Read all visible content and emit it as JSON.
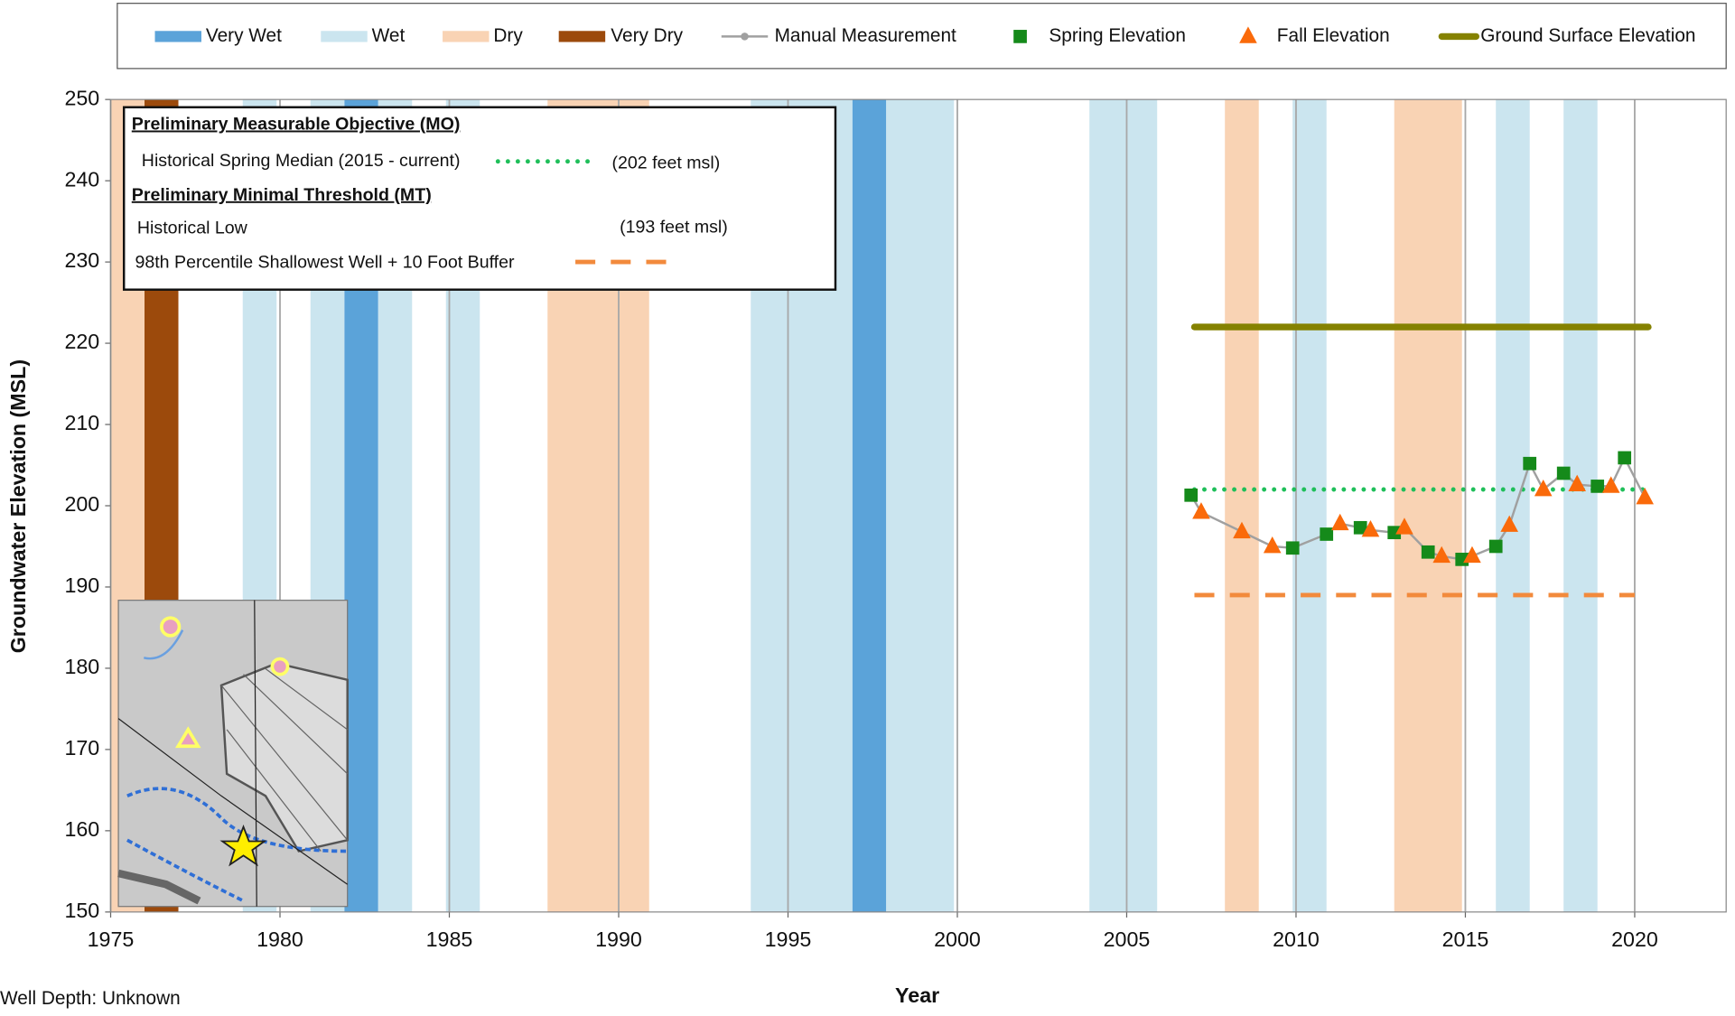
{
  "chart_data": {
    "type": "hydrograph",
    "x_label": "Year",
    "y_label": "Groundwater Elevation (MSL)",
    "footnote": "Well Depth: Unknown",
    "xlim": [
      1975,
      2022.7
    ],
    "xticks": [
      1975,
      1980,
      1985,
      1990,
      1995,
      2000,
      2005,
      2010,
      2015,
      2020
    ],
    "ylim": [
      150,
      250
    ],
    "yticks": [
      150,
      160,
      170,
      180,
      190,
      200,
      210,
      220,
      230,
      240,
      250
    ],
    "grid": "x",
    "bands": [
      {
        "name": "Very Wet",
        "color": "#5ba3d9",
        "ranges": [
          [
            1981.9,
            1982.9
          ],
          [
            1996.9,
            1997.9
          ]
        ]
      },
      {
        "name": "Wet",
        "color": "#cbe5ef",
        "ranges": [
          [
            1978.9,
            1979.9
          ],
          [
            1980.9,
            1981.9
          ],
          [
            1982.9,
            1983.9
          ],
          [
            1984.9,
            1985.9
          ],
          [
            1993.9,
            1996.9
          ],
          [
            1997.9,
            1999.9
          ],
          [
            2003.9,
            2005.9
          ],
          [
            2009.9,
            2010.9
          ],
          [
            2015.9,
            2016.9
          ],
          [
            2017.9,
            2018.9
          ]
        ]
      },
      {
        "name": "Dry",
        "color": "#f9d3b4",
        "ranges": [
          [
            1975,
            1976
          ],
          [
            1987.9,
            1990.9
          ],
          [
            2007.9,
            2008.9
          ],
          [
            2012.9,
            2014.9
          ]
        ]
      },
      {
        "name": "Very Dry",
        "color": "#9c4a0c",
        "ranges": [
          [
            1976,
            1977
          ]
        ]
      }
    ],
    "series": [
      {
        "name": "Manual Measurement",
        "color": "#a0a0a0",
        "marker": "line",
        "x": [
          2006.9,
          2007.2,
          2008.4,
          2009.3,
          2009.9,
          2010.9,
          2011.3,
          2011.9,
          2012.2,
          2012.9,
          2013.2,
          2013.9,
          2014.3,
          2014.9,
          2015.2,
          2015.9,
          2016.3,
          2016.9,
          2017.3,
          2017.9,
          2018.3,
          2018.9,
          2019.3,
          2019.7,
          2020.3
        ],
        "values": [
          201.3,
          199.2,
          196.8,
          195,
          194.8,
          196.5,
          197.8,
          197.3,
          197,
          196.7,
          197.3,
          194.3,
          193.8,
          193.4,
          193.8,
          195,
          197.6,
          205.2,
          202,
          204,
          202.6,
          202.4,
          202.4,
          205.9,
          201
        ]
      },
      {
        "name": "Spring Elevation",
        "color": "#158a1a",
        "marker": "square",
        "x": [
          2006.9,
          2009.9,
          2010.9,
          2011.9,
          2012.9,
          2013.9,
          2014.9,
          2015.9,
          2016.9,
          2017.9,
          2018.9,
          2019.7
        ],
        "values": [
          201.3,
          194.8,
          196.5,
          197.3,
          196.7,
          194.3,
          193.4,
          195,
          205.2,
          204,
          202.4,
          205.9
        ]
      },
      {
        "name": "Fall Elevation",
        "color": "#fa6a0a",
        "marker": "triangle",
        "x": [
          2007.2,
          2008.4,
          2009.3,
          2011.3,
          2012.2,
          2013.2,
          2014.3,
          2015.2,
          2016.3,
          2017.3,
          2018.3,
          2019.3,
          2020.3
        ],
        "values": [
          199.2,
          196.8,
          195,
          197.8,
          197,
          197.3,
          193.8,
          193.8,
          197.6,
          202,
          202.6,
          202.4,
          201
        ]
      }
    ],
    "lines": [
      {
        "name": "Ground Surface Elevation",
        "color": "#858200",
        "style": "solid",
        "x": [
          2007,
          2020.4
        ],
        "values": [
          222,
          222
        ]
      },
      {
        "name": "Historical Spring Median (2015 - current)",
        "color": "#1fbf5a",
        "style": "dotted",
        "x": [
          2007,
          2020.3
        ],
        "values": [
          202,
          202
        ]
      },
      {
        "name": "Historical Low",
        "color": "#e3aaae",
        "style": "blurred",
        "x": [
          2007,
          2020
        ],
        "values": [
          193,
          193
        ]
      },
      {
        "name": "98th Percentile Shallowest Well + 10 Foot Buffer",
        "color": "#f28a3c",
        "style": "dashed",
        "x": [
          2007,
          2020
        ],
        "values": [
          189,
          189
        ]
      }
    ],
    "reference_legend": {
      "mo_heading": "Preliminary Measurable Objective (MO)",
      "mo_note": "(202 feet msl)",
      "mt_heading": "Preliminary Minimal Threshold (MT)",
      "mt_note": "(193 feet msl)"
    }
  }
}
